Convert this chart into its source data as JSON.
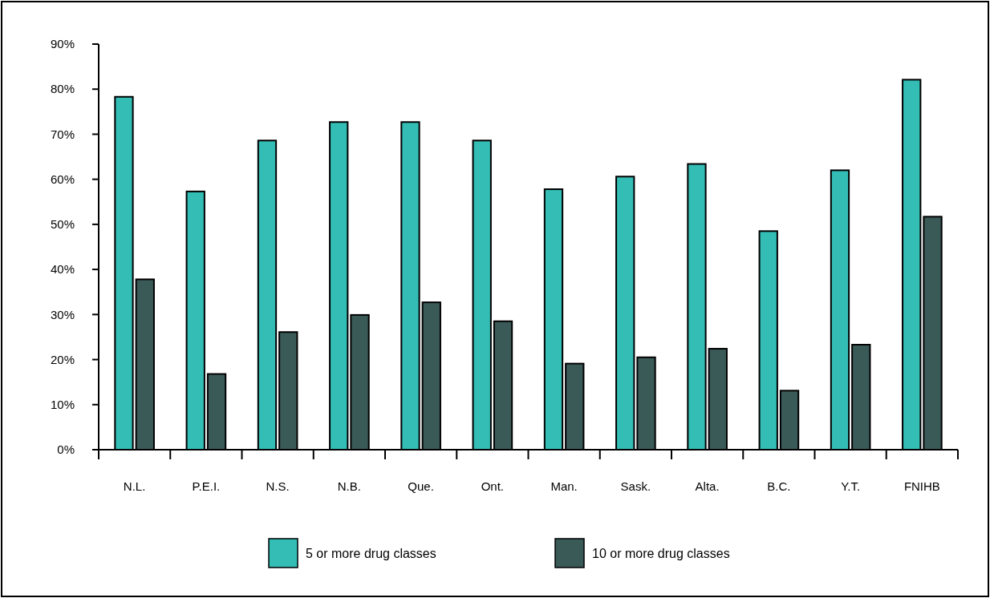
{
  "chart_data": {
    "type": "bar",
    "categories": [
      "N.L.",
      "P.E.I.",
      "N.S.",
      "N.B.",
      "Que.",
      "Ont.",
      "Man.",
      "Sask.",
      "Alta.",
      "B.C.",
      "Y.T.",
      "FNIHB"
    ],
    "series": [
      {
        "name": "5 or more drug classes",
        "color": "#33bdb5",
        "values": [
          78.3,
          57.3,
          68.6,
          72.7,
          72.7,
          68.6,
          57.8,
          60.6,
          63.4,
          48.5,
          62,
          82.1
        ]
      },
      {
        "name": "10 or more drug classes",
        "color": "#3a5a58",
        "values": [
          37.8,
          16.8,
          26.1,
          29.9,
          32.7,
          28.5,
          19.1,
          20.5,
          22.4,
          13.1,
          23.3,
          51.7
        ]
      }
    ],
    "ylim": [
      0,
      90
    ],
    "yticks": [
      {
        "value": 0,
        "label": "0%"
      },
      {
        "value": 10,
        "label": "10%"
      },
      {
        "value": 20,
        "label": "20%"
      },
      {
        "value": 30,
        "label": "30%"
      },
      {
        "value": 40,
        "label": "40%"
      },
      {
        "value": 50,
        "label": "50%"
      },
      {
        "value": 60,
        "label": "60%"
      },
      {
        "value": 70,
        "label": "70%"
      },
      {
        "value": 80,
        "label": "80%"
      },
      {
        "value": 90,
        "label": "90%"
      }
    ],
    "legend": "bottom"
  }
}
